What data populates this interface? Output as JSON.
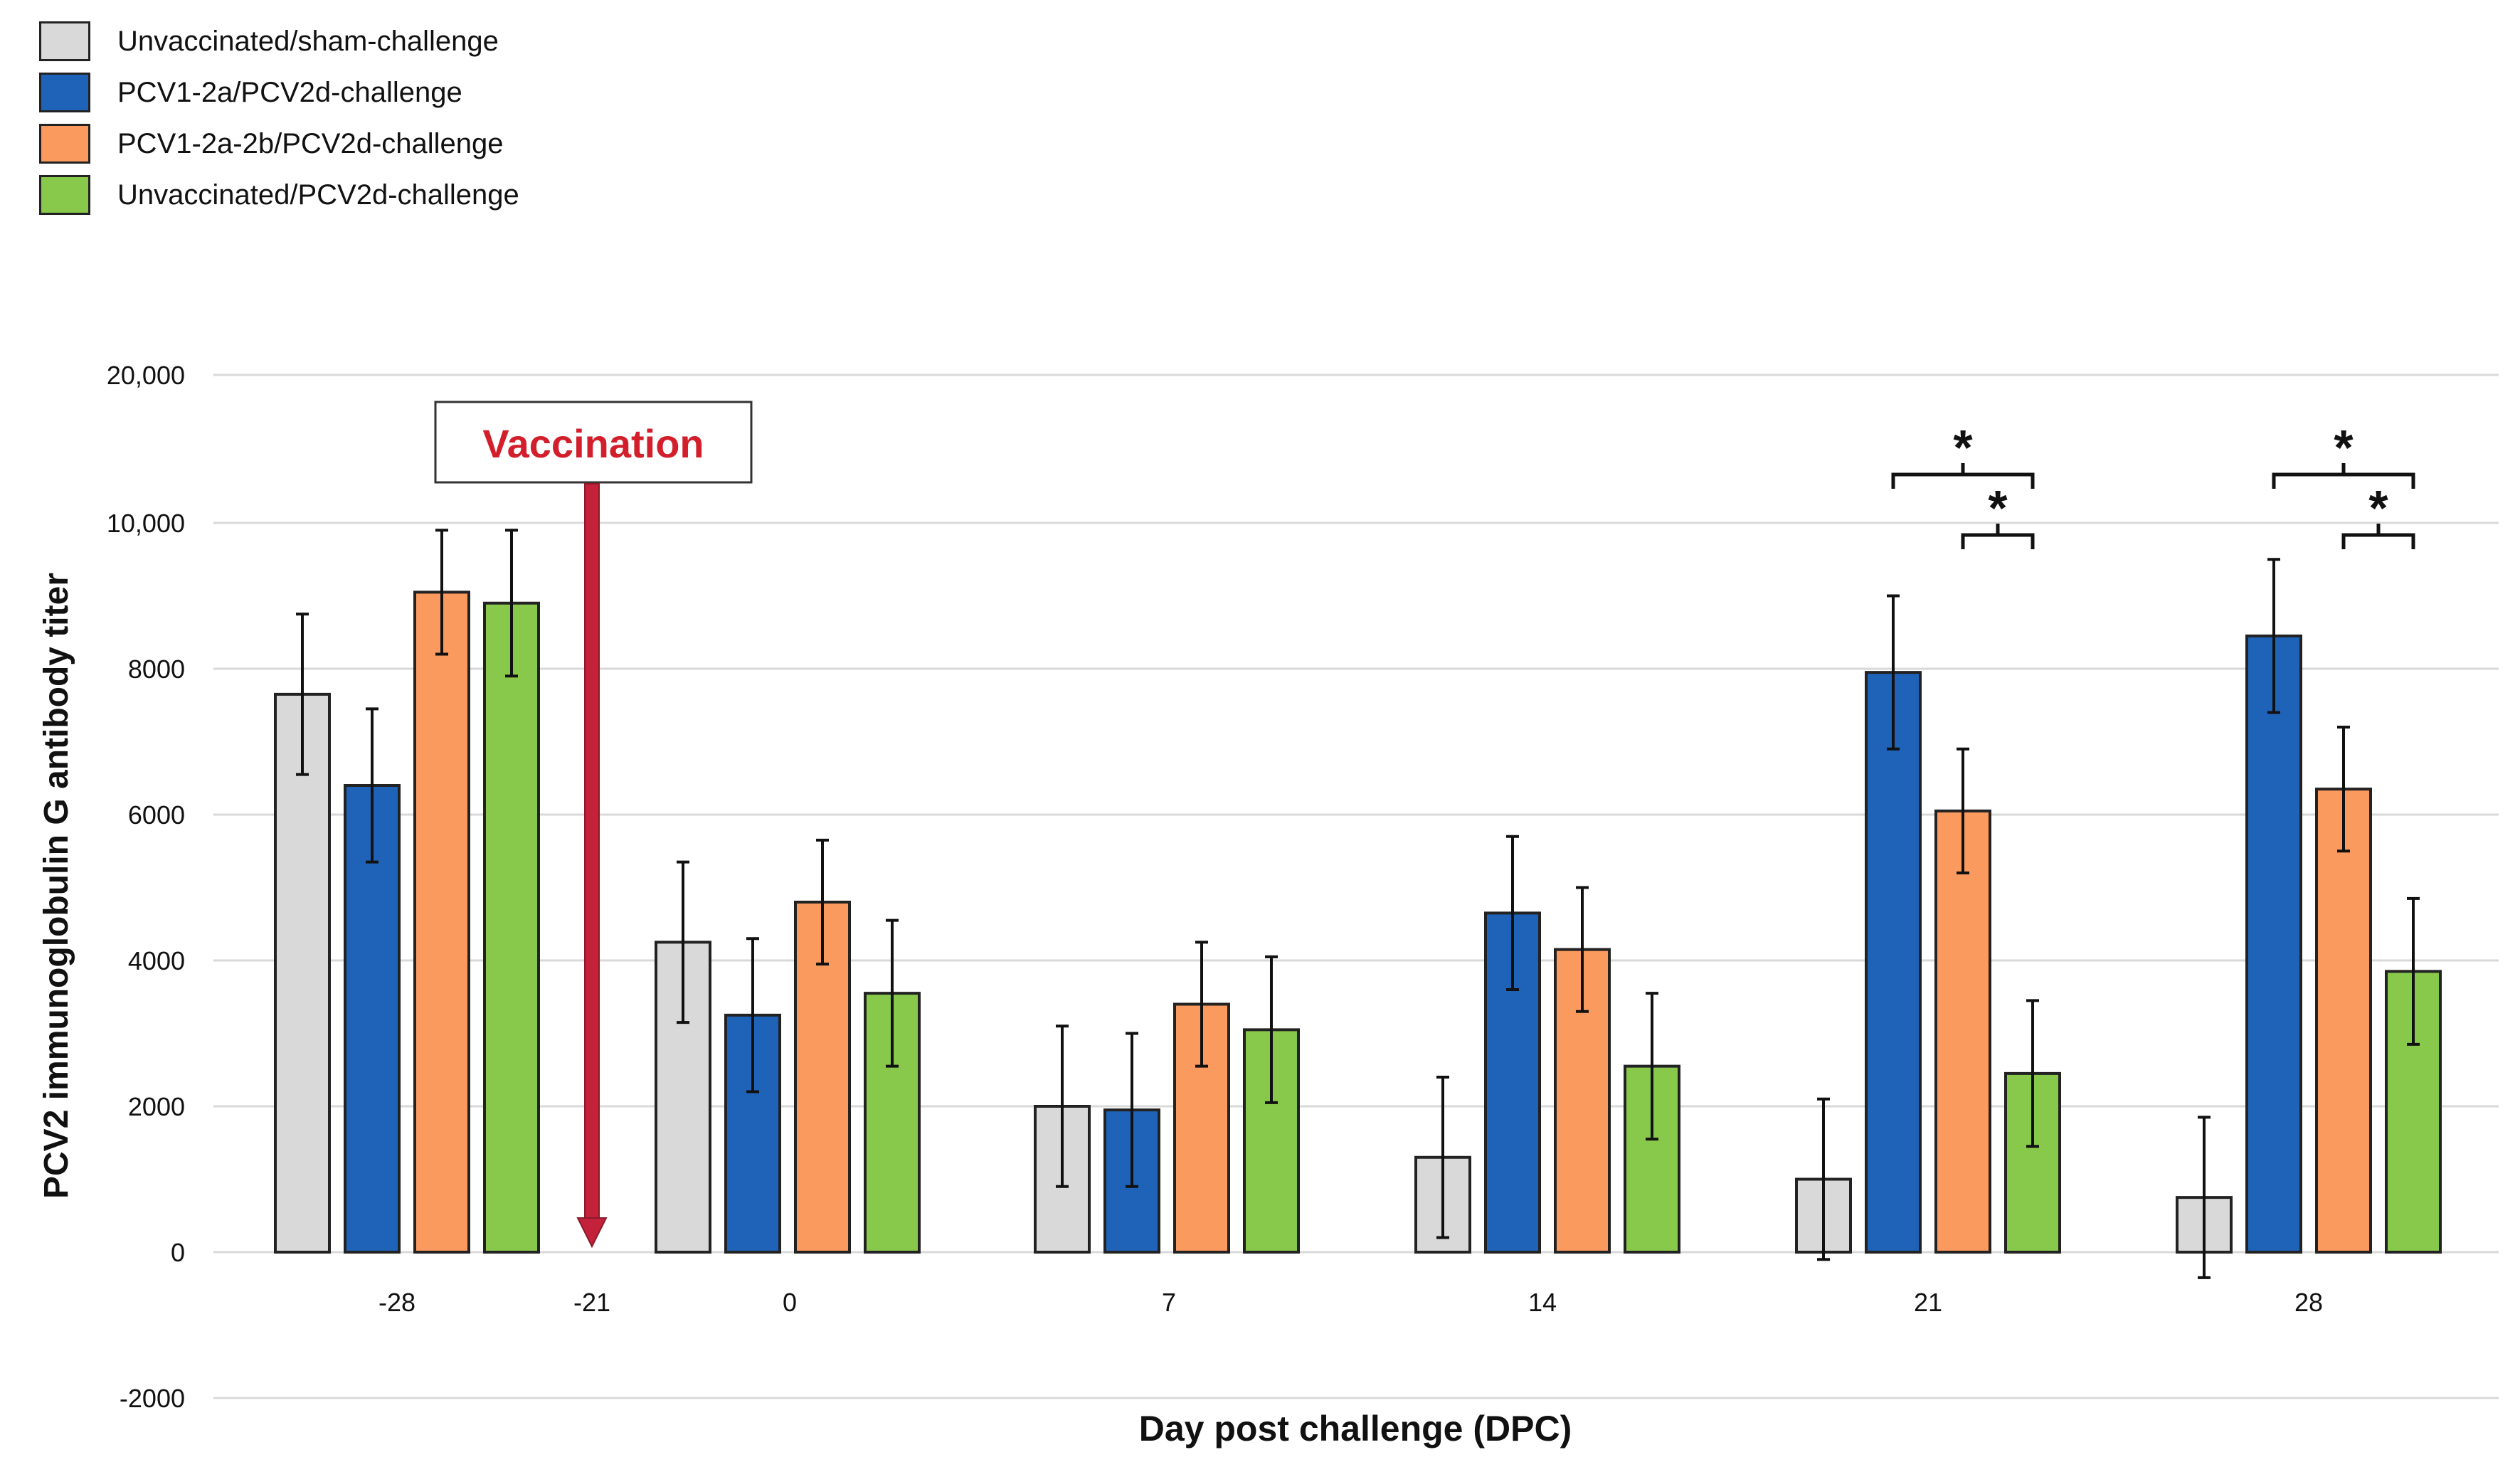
{
  "chart_data": {
    "type": "bar",
    "ylabel": "PCV2 immunoglobulin G antibody titer",
    "xlabel": "Day post challenge (DPC)",
    "y_tick_labels": [
      "-2000",
      "0",
      "2000",
      "4000",
      "6000",
      "8000",
      "10,000",
      "20,000"
    ],
    "x_tick_labels": [
      "-28",
      "-21",
      "0",
      "7",
      "14",
      "21",
      "28"
    ],
    "grid": true,
    "legend_position": "top-left",
    "annotation": {
      "text": "Vaccination",
      "x_label": "-21",
      "color": "#d21f2b"
    },
    "series": [
      {
        "name": "Unvaccinated/sham-challenge",
        "color": "#d9d9d9",
        "values": [
          7650,
          4250,
          2000,
          1300,
          1000,
          750
        ],
        "errors": [
          1100,
          1100,
          1100,
          1100,
          1100,
          1100
        ]
      },
      {
        "name": "PCV1-2a/PCV2d-challenge",
        "color": "#1f63b9",
        "values": [
          6400,
          3250,
          1950,
          4650,
          7950,
          8450
        ],
        "errors": [
          1050,
          1050,
          1050,
          1050,
          1050,
          1050
        ]
      },
      {
        "name": "PCV1-2a-2b/PCV2d-challenge",
        "color": "#fb9a5e",
        "values": [
          9050,
          4800,
          3400,
          4150,
          6050,
          6350
        ],
        "errors": [
          850,
          850,
          850,
          850,
          850,
          850
        ]
      },
      {
        "name": "Unvaccinated/PCV2d-challenge",
        "color": "#88c94c",
        "values": [
          8900,
          3550,
          3050,
          2550,
          2450,
          3850
        ],
        "errors": [
          1000,
          1000,
          1000,
          1000,
          1000,
          1000
        ]
      }
    ],
    "group_labels": [
      "-28",
      "0",
      "7",
      "14",
      "21",
      "28"
    ],
    "significance": [
      {
        "group": "21",
        "from_series": 1,
        "to_series": 3,
        "symbol": "*"
      },
      {
        "group": "21",
        "from_series": 2,
        "to_series": 3,
        "symbol": "*"
      },
      {
        "group": "28",
        "from_series": 1,
        "to_series": 3,
        "symbol": "*"
      },
      {
        "group": "28",
        "from_series": 2,
        "to_series": 3,
        "symbol": "*"
      }
    ]
  }
}
